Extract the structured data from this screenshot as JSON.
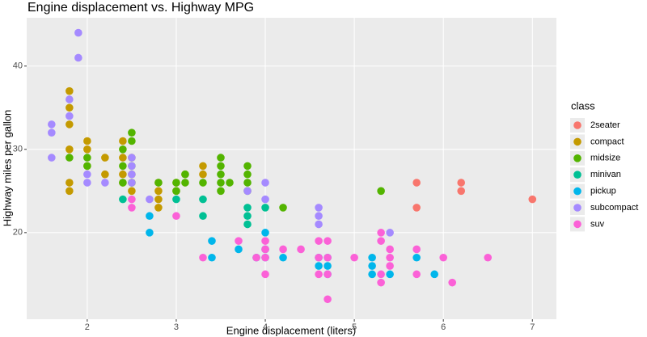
{
  "chart_data": {
    "type": "scatter",
    "title": "Engine displacement vs. Highway MPG",
    "x_label": "Engine displacement (liters)",
    "y_label": "Highway miles per gallon",
    "legend_title": "class",
    "legend_position": "right",
    "grid": true,
    "xlim": [
      1.32,
      7.27
    ],
    "xticks": [
      2,
      3,
      4,
      5,
      6,
      7
    ],
    "ylim": [
      9.6,
      45.8
    ],
    "yticks": [
      20,
      30,
      40
    ],
    "series": [
      {
        "name": "2seater",
        "color": "#F8766D",
        "x": [
          5.7,
          5.7,
          6.2,
          6.2,
          7.0
        ],
        "values": [
          26,
          23,
          26,
          25,
          24
        ]
      },
      {
        "name": "compact",
        "color": "#C49A00",
        "x": [
          1.8,
          1.8,
          1.8,
          1.8,
          1.8,
          1.8,
          2.0,
          2.0,
          2.0,
          2.2,
          2.2,
          2.4,
          2.4,
          2.4,
          2.4,
          2.5,
          2.5,
          2.5,
          2.5,
          2.8,
          2.8,
          2.8,
          2.8,
          3.0,
          3.0,
          3.1,
          3.3,
          3.3
        ],
        "values": [
          37,
          35,
          33,
          30,
          26,
          25,
          31,
          30,
          28,
          29,
          27,
          31,
          29,
          27,
          26,
          29,
          27,
          26,
          25,
          26,
          25,
          24,
          23,
          26,
          25,
          27,
          28,
          27
        ]
      },
      {
        "name": "midsize",
        "color": "#53B400",
        "x": [
          1.8,
          2.0,
          2.0,
          2.4,
          2.4,
          2.4,
          2.5,
          2.5,
          2.5,
          2.5,
          2.8,
          3.0,
          3.0,
          3.1,
          3.1,
          3.3,
          3.5,
          3.5,
          3.5,
          3.5,
          3.5,
          3.6,
          3.8,
          3.8,
          3.8,
          3.8,
          4.2,
          5.3
        ],
        "values": [
          29,
          29,
          28,
          30,
          28,
          26,
          32,
          31,
          28,
          26,
          26,
          26,
          25,
          27,
          26,
          26,
          29,
          28,
          27,
          26,
          25,
          26,
          28,
          27,
          26,
          25,
          23,
          25
        ]
      },
      {
        "name": "minivan",
        "color": "#00C094",
        "x": [
          2.4,
          3.0,
          3.3,
          3.3,
          3.8,
          3.8,
          3.8,
          4.0
        ],
        "values": [
          24,
          24,
          24,
          22,
          23,
          22,
          21,
          23
        ]
      },
      {
        "name": "pickup",
        "color": "#00B6EB",
        "x": [
          2.7,
          2.7,
          3.4,
          3.4,
          3.7,
          3.9,
          4.0,
          4.0,
          4.0,
          4.2,
          4.6,
          4.6,
          4.7,
          4.7,
          4.7,
          5.2,
          5.2,
          5.2,
          5.4,
          5.7,
          5.9
        ],
        "values": [
          22,
          20,
          19,
          17,
          18,
          17,
          20,
          18,
          17,
          17,
          17,
          16,
          17,
          16,
          15,
          17,
          16,
          15,
          15,
          17,
          15
        ]
      },
      {
        "name": "subcompact",
        "color": "#A58AFF",
        "x": [
          1.6,
          1.6,
          1.6,
          1.8,
          1.8,
          1.9,
          1.9,
          2.0,
          2.0,
          2.2,
          2.5,
          2.5,
          2.5,
          2.5,
          2.7,
          3.8,
          4.0,
          4.0,
          4.6,
          4.6,
          4.6,
          5.4
        ],
        "values": [
          33,
          32,
          29,
          36,
          34,
          44,
          41,
          27,
          26,
          26,
          29,
          28,
          27,
          26,
          24,
          25,
          26,
          24,
          23,
          22,
          21,
          20
        ]
      },
      {
        "name": "suv",
        "color": "#FB61D7",
        "x": [
          2.5,
          2.5,
          3.0,
          3.3,
          3.7,
          3.9,
          4.0,
          4.0,
          4.0,
          4.0,
          4.2,
          4.4,
          4.6,
          4.6,
          4.6,
          4.7,
          4.7,
          4.7,
          4.7,
          5.0,
          5.3,
          5.3,
          5.3,
          5.3,
          5.4,
          5.4,
          5.4,
          5.7,
          5.7,
          6.0,
          6.1,
          6.5
        ],
        "values": [
          24,
          23,
          22,
          17,
          19,
          17,
          19,
          18,
          17,
          15,
          18,
          18,
          19,
          17,
          15,
          19,
          17,
          15,
          12,
          17,
          20,
          19,
          15,
          14,
          18,
          17,
          16,
          18,
          15,
          17,
          14,
          17
        ]
      }
    ]
  }
}
